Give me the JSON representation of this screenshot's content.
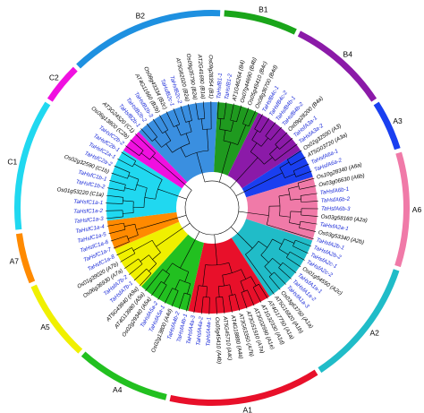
{
  "title": "",
  "groups": [
    {
      "name": "B2",
      "color": "#1e90e0",
      "fill": "#3a8fe0",
      "start": -44,
      "end": 3
    },
    {
      "name": "B1",
      "color": "#1aa51a",
      "fill": "#1f9a1f",
      "start": 3,
      "end": 26
    },
    {
      "name": "B4",
      "color": "#8b1aa8",
      "fill": "#8b1aa8",
      "start": 26,
      "end": 57
    },
    {
      "name": "A3",
      "color": "#1a3ff0",
      "fill": "#1a3ff0",
      "start": 57,
      "end": 73
    },
    {
      "name": "A6",
      "color": "#f07aa8",
      "fill": "#f07aa8",
      "start": 73,
      "end": 108
    },
    {
      "name": "A2",
      "color": "#20bcc8",
      "fill": "#20bcc8",
      "start": 108,
      "end": 147
    },
    {
      "name": "A1",
      "color": "#e8102a",
      "fill": "#e8102a",
      "start": 147,
      "end": 193
    },
    {
      "name": "A4",
      "color": "#22c020",
      "fill": "#22c020",
      "start": 193,
      "end": 222
    },
    {
      "name": "A5",
      "color": "#f0f000",
      "fill": "#f0f000",
      "start": 222,
      "end": 247
    },
    {
      "name": "A7",
      "color": "#ff8a00",
      "fill": "#ff8a00",
      "start": 247,
      "end": 263
    },
    {
      "name": "C1",
      "color": "#20d8f0",
      "fill": "#20d8f0",
      "start": 263,
      "end": 303
    },
    {
      "name": "C2",
      "color": "#f010e0",
      "fill": "#f010e0",
      "start": 303,
      "end": 316
    }
  ],
  "leaves": [
    {
      "label": "TaHsfB2b-1",
      "color": "blue"
    },
    {
      "label": "TaHsfB2b-2",
      "color": "blue"
    },
    {
      "label": "TaHsfB2b-3",
      "color": "blue"
    },
    {
      "label": "AT4G11660 (B2b)",
      "color": "black"
    },
    {
      "label": "Os08g43334 (B2c)",
      "color": "black"
    },
    {
      "label": "TaHsfB2c-1",
      "color": "blue"
    },
    {
      "label": "TaHsfB2c-2",
      "color": "blue"
    },
    {
      "label": "AT5G62020 (B2a)",
      "color": "black"
    },
    {
      "label": "Os09g35790 (B2a)",
      "color": "black"
    },
    {
      "label": "AT2G41690 (B1a)",
      "color": "black"
    },
    {
      "label": "Os09g28354 (B1)",
      "color": "black"
    },
    {
      "label": "TaHsfB1-1",
      "color": "blue"
    },
    {
      "label": "TaHsfB1-2",
      "color": "blue"
    },
    {
      "label": "AT1G46264 (B4)",
      "color": "black"
    },
    {
      "label": "Os07g44690 (B4b)",
      "color": "black"
    },
    {
      "label": "Os05g45410 (B4c)",
      "color": "black"
    },
    {
      "label": "Os08g36700 (B4d)",
      "color": "black"
    },
    {
      "label": "TaHsfB4c-1",
      "color": "blue"
    },
    {
      "label": "TaHsfB4c-2",
      "color": "blue"
    },
    {
      "label": "TaHsfB4b-1",
      "color": "blue"
    },
    {
      "label": "TaHsfB4b-2",
      "color": "blue"
    },
    {
      "label": "Os09g28200 (B4a)",
      "color": "black"
    },
    {
      "label": "TaHsfA3a-1",
      "color": "blue"
    },
    {
      "label": "TaHsfA3a-2",
      "color": "blue"
    },
    {
      "label": "Os02g32590 (A3)",
      "color": "black"
    },
    {
      "label": "AT5G03720 (A3a)",
      "color": "black"
    },
    {
      "label": "TaHsfA6a-1",
      "color": "blue"
    },
    {
      "label": "TaHsfA6a-2",
      "color": "blue"
    },
    {
      "label": "Os10g28340 (A6a)",
      "color": "black"
    },
    {
      "label": "Os03g06630 (A6b)",
      "color": "black"
    },
    {
      "label": "TaHsfA6b-1",
      "color": "blue"
    },
    {
      "label": "TaHsfA6b-2",
      "color": "blue"
    },
    {
      "label": "TaHsfA6b-3",
      "color": "blue"
    },
    {
      "label": "Os03g58160 (A2a)",
      "color": "black"
    },
    {
      "label": "TaHsfA2a-1",
      "color": "blue"
    },
    {
      "label": "Os03g53340 (A2b)",
      "color": "black"
    },
    {
      "label": "TaHsfA2b-1",
      "color": "blue"
    },
    {
      "label": "TaHsfA2b-2",
      "color": "blue"
    },
    {
      "label": "TaHsfA2c-1",
      "color": "blue"
    },
    {
      "label": "TaHsfA2c-2",
      "color": "blue"
    },
    {
      "label": "Os01g54550 (A2c)",
      "color": "black"
    },
    {
      "label": "TaHsfA1a-1",
      "color": "blue"
    },
    {
      "label": "TaHsfA1a-2",
      "color": "blue"
    },
    {
      "label": "TaHsfA1a-3",
      "color": "blue"
    },
    {
      "label": "Os03g63750 (A1a)",
      "color": "black"
    },
    {
      "label": "AT5G16820 (A1b)",
      "color": "black"
    },
    {
      "label": "AT4G17750 (A1a)",
      "color": "black"
    },
    {
      "label": "AT1G32330 (A1d)",
      "color": "black"
    },
    {
      "label": "AT3G02990 (A1e)",
      "color": "black"
    },
    {
      "label": "AT3G51910 (A7a)",
      "color": "black"
    },
    {
      "label": "AT3G63350 (A7b)",
      "color": "black"
    },
    {
      "label": "AT4G18880 (A4a)",
      "color": "black"
    },
    {
      "label": "AT5G45710 (A4c)",
      "color": "black"
    },
    {
      "label": "Os05g45410 (A4b)",
      "color": "black"
    },
    {
      "label": "TaHsfA4a-1",
      "color": "blue"
    },
    {
      "label": "TaHsfA4a-2",
      "color": "blue"
    },
    {
      "label": "TaHsfA4a-3",
      "color": "blue"
    },
    {
      "label": "TaHsfA4b-1",
      "color": "blue"
    },
    {
      "label": "TaHsfA4b-2",
      "color": "blue"
    },
    {
      "label": "Os02g13800 (A4d)",
      "color": "black"
    },
    {
      "label": "TaHsfA5a-1",
      "color": "blue"
    },
    {
      "label": "TaHsfA5a-2",
      "color": "blue"
    },
    {
      "label": "Os02g29340 (A5a)",
      "color": "black"
    },
    {
      "label": "AT4G13980 (A5a)",
      "color": "black"
    },
    {
      "label": "AT5G43840 (A9a)",
      "color": "black"
    },
    {
      "label": "TaHsfA7b-1",
      "color": "blue"
    },
    {
      "label": "TaHsfA7b-2",
      "color": "blue"
    },
    {
      "label": "Os06g36930 (A7a)",
      "color": "black"
    },
    {
      "label": "Os01g39020 (A7b)",
      "color": "black"
    },
    {
      "label": "TaHsfC1a-8",
      "color": "blue"
    },
    {
      "label": "TaHsfC1a-7",
      "color": "blue"
    },
    {
      "label": "TaHsfC1a-6",
      "color": "blue"
    },
    {
      "label": "TaHsfC1a-5",
      "color": "blue"
    },
    {
      "label": "TaHsfC1a-4",
      "color": "blue"
    },
    {
      "label": "TaHsfC1a-3",
      "color": "blue"
    },
    {
      "label": "TaHsfC1a-2",
      "color": "blue"
    },
    {
      "label": "TaHsfC1a-1",
      "color": "blue"
    },
    {
      "label": "Os01g53220 (C1a)",
      "color": "black"
    },
    {
      "label": "TaHsfC1b-2",
      "color": "blue"
    },
    {
      "label": "TaHsfC1b-1",
      "color": "blue"
    },
    {
      "label": "Os02g32590 (C1b)",
      "color": "black"
    },
    {
      "label": "TaHsfC2a-2",
      "color": "blue"
    },
    {
      "label": "TaHsfC2a-1",
      "color": "blue"
    },
    {
      "label": "TaHsfC2b-1",
      "color": "blue"
    },
    {
      "label": "TaHsfC2b-2",
      "color": "blue"
    },
    {
      "label": "Os06g13800 (C2b)",
      "color": "black"
    },
    {
      "label": "AT3G24520 (C1)",
      "color": "black"
    }
  ]
}
